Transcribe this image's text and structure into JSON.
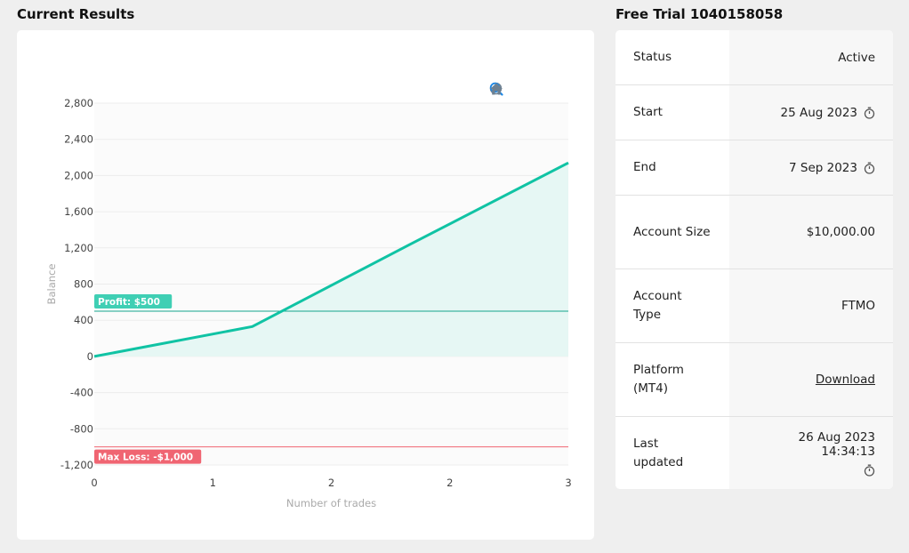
{
  "titles": {
    "results": "Current Results",
    "trial": "Free Trial 1040158058"
  },
  "toolbar": {
    "items": [
      "zoom-in-icon",
      "zoom-out-icon",
      "zoom-select-icon",
      "home-icon"
    ],
    "accent": "#1e88e5",
    "muted": "#6e8192"
  },
  "chart_data": {
    "type": "area",
    "xlabel": "Number of trades",
    "ylabel": "Balance",
    "x_ticks": [
      "0",
      "1",
      "2",
      "2",
      "3"
    ],
    "x_tick_values": [
      0,
      0.75,
      1.5,
      2.25,
      3
    ],
    "y_ticks": [
      "2,800",
      "2,400",
      "2,000",
      "1,600",
      "1,200",
      "800",
      "400",
      "0",
      "-400",
      "-800",
      "-1,200"
    ],
    "y_tick_values": [
      2800,
      2400,
      2000,
      1600,
      1200,
      800,
      400,
      0,
      -400,
      -800,
      -1200
    ],
    "xlim": [
      0,
      3
    ],
    "ylim": [
      -1200,
      2800
    ],
    "series": [
      {
        "x": [
          0,
          1,
          2,
          3
        ],
        "values": [
          0,
          330,
          1240,
          2140
        ]
      }
    ],
    "line_color": "#10c3a4",
    "fill_color": "#e6f7f4",
    "grid": true,
    "annotations": [
      {
        "label": "Profit: $500",
        "y": 500,
        "color": "#3fcfb4",
        "line_color": "#14a58c"
      },
      {
        "label": "Max Loss: -$1,000",
        "y": -1000,
        "color": "#f06572",
        "line_color": "#f06572"
      }
    ]
  },
  "info": {
    "rows": [
      {
        "label": "Status",
        "value": "Active"
      },
      {
        "label": "Start",
        "value": "25 Aug 2023",
        "icon": "stopwatch-icon"
      },
      {
        "label": "End",
        "value": "7 Sep 2023",
        "icon": "stopwatch-icon"
      },
      {
        "label": "Account Size",
        "value": "$10,000.00"
      },
      {
        "label": "Account Type",
        "value": "FTMO"
      },
      {
        "label": "Platform (MT4)",
        "value": "Download",
        "link": true
      },
      {
        "label": "Last updated",
        "value": "26 Aug 2023 14:34:13",
        "icon": "stopwatch-icon",
        "stacked": true
      }
    ]
  }
}
